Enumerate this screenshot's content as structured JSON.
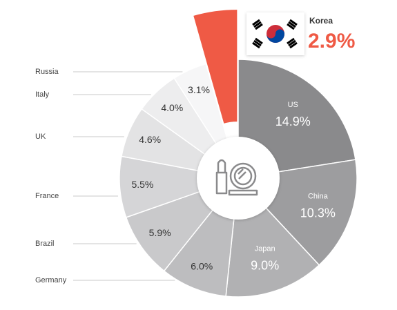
{
  "chart_data": {
    "type": "pie",
    "categories": [
      "US",
      "China",
      "Japan",
      "Germany",
      "Brazil",
      "France",
      "UK",
      "Italy",
      "Russia",
      "Korea"
    ],
    "values": [
      14.9,
      10.3,
      9.0,
      6.0,
      5.9,
      5.5,
      4.6,
      4.0,
      3.1,
      2.9
    ],
    "value_labels": [
      "14.9%",
      "10.3%",
      "9.0%",
      "6.0%",
      "5.9%",
      "5.5%",
      "4.6%",
      "4.0%",
      "3.1%",
      "2.9%"
    ],
    "colors": [
      "#8a8a8c",
      "#9d9d9f",
      "#b1b1b3",
      "#bdbdbf",
      "#c9c9cb",
      "#d5d5d7",
      "#e3e3e4",
      "#ededee",
      "#f6f6f7",
      "#ef5a45"
    ]
  }
}
